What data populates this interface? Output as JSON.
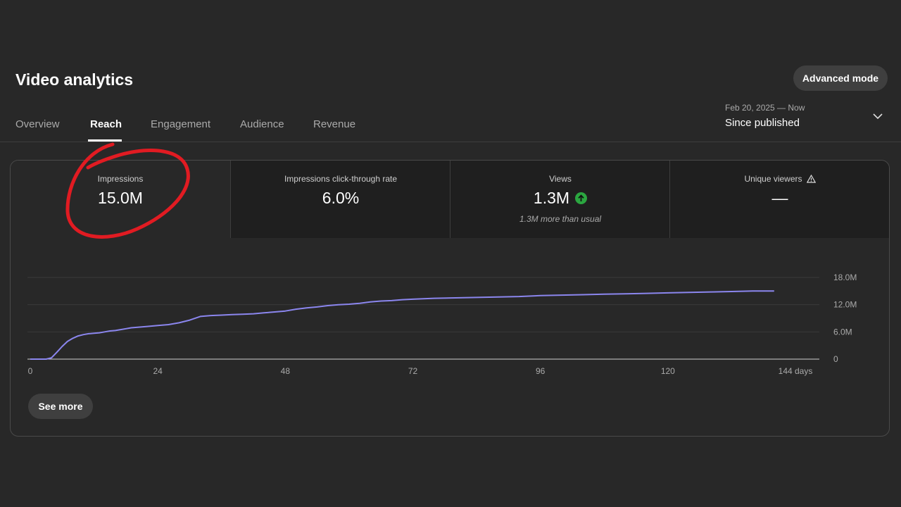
{
  "header": {
    "title": "Video analytics",
    "advanced_mode_label": "Advanced mode"
  },
  "tabs": [
    {
      "label": "Overview",
      "active": false
    },
    {
      "label": "Reach",
      "active": true
    },
    {
      "label": "Engagement",
      "active": false
    },
    {
      "label": "Audience",
      "active": false
    },
    {
      "label": "Revenue",
      "active": false
    }
  ],
  "date_picker": {
    "range": "Feb 20, 2025 — Now",
    "label": "Since published",
    "icon": "chevron-down-icon"
  },
  "metrics": [
    {
      "label": "Impressions",
      "value": "15.0M",
      "note": ""
    },
    {
      "label": "Impressions click-through rate",
      "value": "6.0%",
      "note": ""
    },
    {
      "label": "Views",
      "value": "1.3M",
      "note": "1.3M more than usual",
      "trend_icon": "arrow-up-icon",
      "trend_color": "#2ba640"
    },
    {
      "label": "Unique viewers",
      "value": "—",
      "note": "",
      "warning_icon": "warning-icon"
    }
  ],
  "see_more_label": "See more",
  "chart_data": {
    "type": "line",
    "title": "",
    "xlabel": "",
    "ylabel": "",
    "x_ticks": [
      "0",
      "24",
      "48",
      "72",
      "96",
      "120",
      "144 days"
    ],
    "y_ticks": [
      "0",
      "6.0M",
      "12.0M",
      "18.0M"
    ],
    "xlim": [
      0,
      144
    ],
    "ylim": [
      0,
      18
    ],
    "y_unit": "M",
    "grid": true,
    "line_color": "#8b86ee",
    "series": [
      {
        "name": "",
        "x": [
          0,
          1,
          2,
          3,
          4,
          5,
          6,
          7,
          8,
          9,
          10,
          11,
          12,
          13,
          14,
          15,
          16,
          17,
          18,
          19,
          20,
          22,
          24,
          26,
          28,
          30,
          32,
          34,
          36,
          38,
          40,
          42,
          44,
          46,
          48,
          50,
          52,
          54,
          56,
          58,
          60,
          62,
          64,
          66,
          68,
          70,
          72,
          76,
          80,
          84,
          88,
          92,
          96,
          100,
          104,
          108,
          112,
          116,
          120,
          124,
          128,
          132,
          136,
          140
        ],
        "y": [
          0,
          0,
          0,
          0,
          0.3,
          1.5,
          2.8,
          3.9,
          4.6,
          5.1,
          5.4,
          5.6,
          5.7,
          5.8,
          6.0,
          6.2,
          6.3,
          6.5,
          6.7,
          6.9,
          7.0,
          7.2,
          7.4,
          7.6,
          8.0,
          8.6,
          9.4,
          9.6,
          9.7,
          9.8,
          9.9,
          10.0,
          10.2,
          10.4,
          10.6,
          11.0,
          11.3,
          11.5,
          11.8,
          12.0,
          12.1,
          12.3,
          12.6,
          12.8,
          12.9,
          13.1,
          13.2,
          13.4,
          13.5,
          13.6,
          13.7,
          13.8,
          14.0,
          14.1,
          14.2,
          14.3,
          14.4,
          14.5,
          14.6,
          14.7,
          14.8,
          14.9,
          15.0,
          15.0
        ]
      }
    ]
  },
  "annotation": {
    "shape": "hand-drawn-circle",
    "color": "#e11b22",
    "target": "Impressions"
  }
}
